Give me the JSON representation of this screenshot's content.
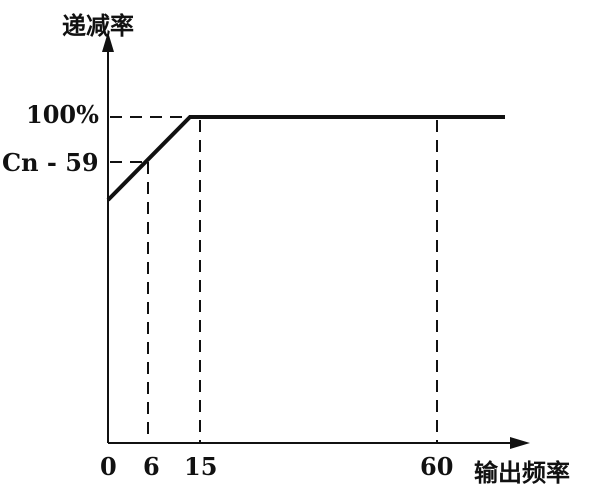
{
  "chart_data": {
    "type": "line",
    "ylabel": "递减率",
    "xlabel": "输出频率",
    "x_ticks": [
      "0",
      "6",
      "15",
      "60"
    ],
    "y_ticks": [
      "Cn - 59",
      "100%"
    ],
    "series": [
      {
        "points": [
          [
            "0",
            "below Cn - 59"
          ],
          [
            "6",
            "Cn - 59"
          ],
          [
            "~13",
            "100%"
          ],
          [
            "beyond 60",
            "100%"
          ]
        ]
      }
    ],
    "reference_lines": {
      "horizontal_dashed": [
        "100%",
        "Cn - 59"
      ],
      "vertical_dashed": [
        "6",
        "15",
        "60"
      ]
    },
    "grid": false,
    "legend": "none"
  }
}
